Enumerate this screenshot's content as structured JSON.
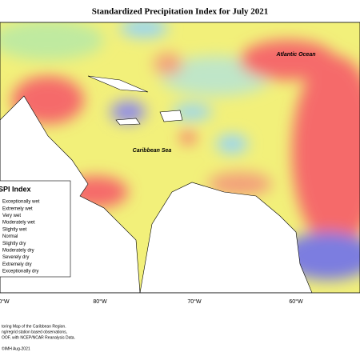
{
  "header": {
    "title": "Standardized Precipitation Index for July 2021"
  },
  "map": {
    "labels": [
      "Atlantic Ocean",
      "Caribbean Sea"
    ],
    "longitudes": [
      "0°W",
      "80°W",
      "70°W",
      "60°W"
    ]
  },
  "legend": {
    "title": "SPI Index",
    "items": [
      "Exceptionally wet",
      "Extremely wet",
      "Very wet",
      "Moderately wet",
      "Slightly wet",
      "Normal",
      "Slightly dry",
      "Moderately dry",
      "Severely dry",
      "Extremely dry",
      "Exceptionally dry"
    ]
  },
  "footer": {
    "lines": [
      "toring Map of the Caribbean Region.",
      "ng/regrid station based observations,",
      "OOF, with NCEP/NCAR Reanalysis Data."
    ],
    "credit": "©IMH Aug-2021"
  }
}
